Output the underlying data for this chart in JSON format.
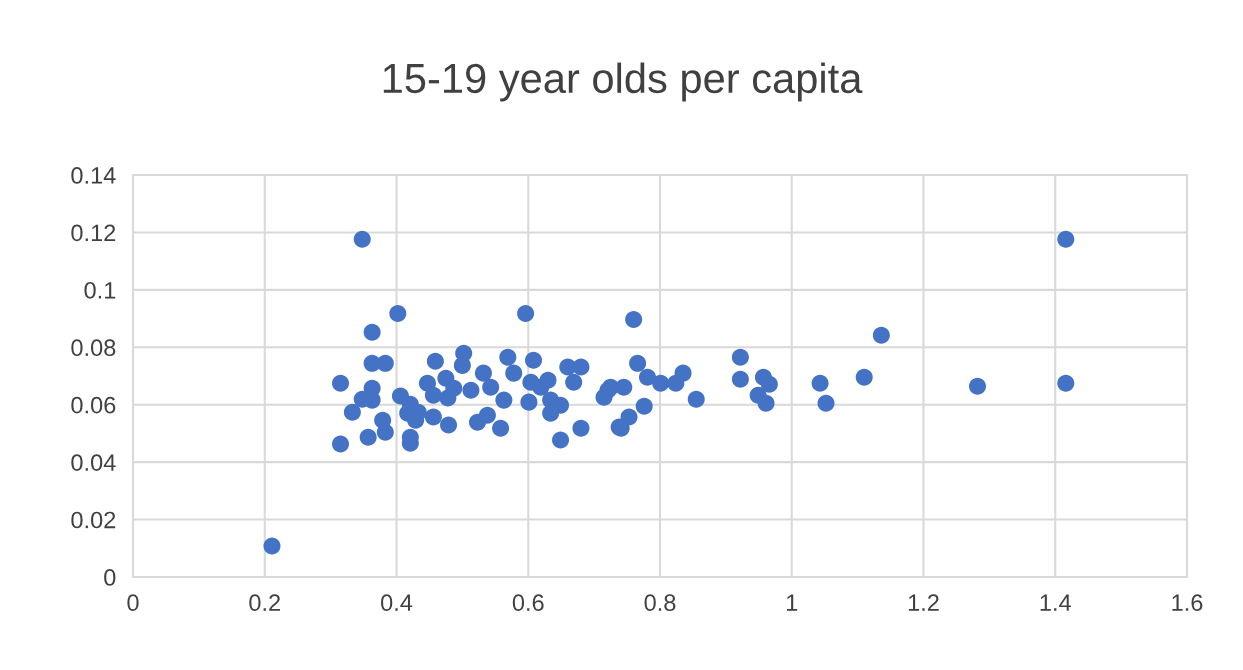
{
  "chart_data": {
    "type": "scatter",
    "title": "15-19 year olds per capita",
    "xlim": [
      0,
      1.6
    ],
    "xticks": [
      0,
      0.2,
      0.4,
      0.6,
      0.8,
      1,
      1.2,
      1.4,
      1.6
    ],
    "ylim": [
      0,
      0.14
    ],
    "yticks": [
      0,
      0.02,
      0.04,
      0.06,
      0.08,
      0.1,
      0.12,
      0.14
    ],
    "grid": true,
    "marker": "circle",
    "series": [
      {
        "color": "#4472c4",
        "x": [
          0.211,
          0.348,
          1.416,
          1.416,
          1.282,
          1.136,
          0.402,
          0.363,
          0.363,
          0.383,
          0.315,
          0.363,
          0.348,
          0.363,
          0.333,
          0.379,
          0.383,
          0.357,
          0.315,
          0.406,
          0.421,
          0.417,
          0.433,
          0.429,
          0.421,
          0.421,
          0.459,
          0.447,
          0.475,
          0.456,
          0.478,
          0.487,
          0.456,
          0.479,
          0.502,
          0.5,
          0.513,
          0.532,
          0.543,
          0.563,
          0.523,
          0.538,
          0.558,
          0.569,
          0.578,
          0.596,
          0.608,
          0.604,
          0.619,
          0.63,
          0.601,
          0.634,
          0.649,
          0.634,
          0.649,
          0.66,
          0.68,
          0.669,
          0.68,
          0.725,
          0.715,
          0.738,
          0.76,
          0.766,
          0.781,
          0.801,
          0.835,
          0.824,
          0.855,
          0.721,
          0.745,
          0.776,
          0.753,
          0.741,
          0.922,
          0.922,
          0.957,
          0.966,
          0.949,
          0.961,
          1.043,
          1.052,
          1.11
        ],
        "values": [
          0.0108,
          0.1176,
          0.1176,
          0.0675,
          0.0664,
          0.0842,
          0.0918,
          0.0852,
          0.0744,
          0.0744,
          0.0675,
          0.0657,
          0.0619,
          0.0616,
          0.0574,
          0.0546,
          0.0504,
          0.0487,
          0.0463,
          0.063,
          0.0602,
          0.057,
          0.0574,
          0.0546,
          0.0487,
          0.0466,
          0.0751,
          0.0675,
          0.0692,
          0.0633,
          0.0623,
          0.0657,
          0.0557,
          0.0529,
          0.0779,
          0.0737,
          0.065,
          0.071,
          0.0661,
          0.0616,
          0.0539,
          0.0563,
          0.0518,
          0.0765,
          0.071,
          0.0918,
          0.0755,
          0.0678,
          0.0661,
          0.0685,
          0.0609,
          0.0616,
          0.0598,
          0.057,
          0.0477,
          0.0731,
          0.0731,
          0.0678,
          0.0518,
          0.0661,
          0.0626,
          0.0522,
          0.0897,
          0.0744,
          0.0696,
          0.0675,
          0.071,
          0.0675,
          0.0619,
          0.065,
          0.0661,
          0.0595,
          0.0557,
          0.0518,
          0.0765,
          0.0689,
          0.0696,
          0.0671,
          0.0633,
          0.0605,
          0.0675,
          0.0605,
          0.0696
        ]
      }
    ]
  }
}
